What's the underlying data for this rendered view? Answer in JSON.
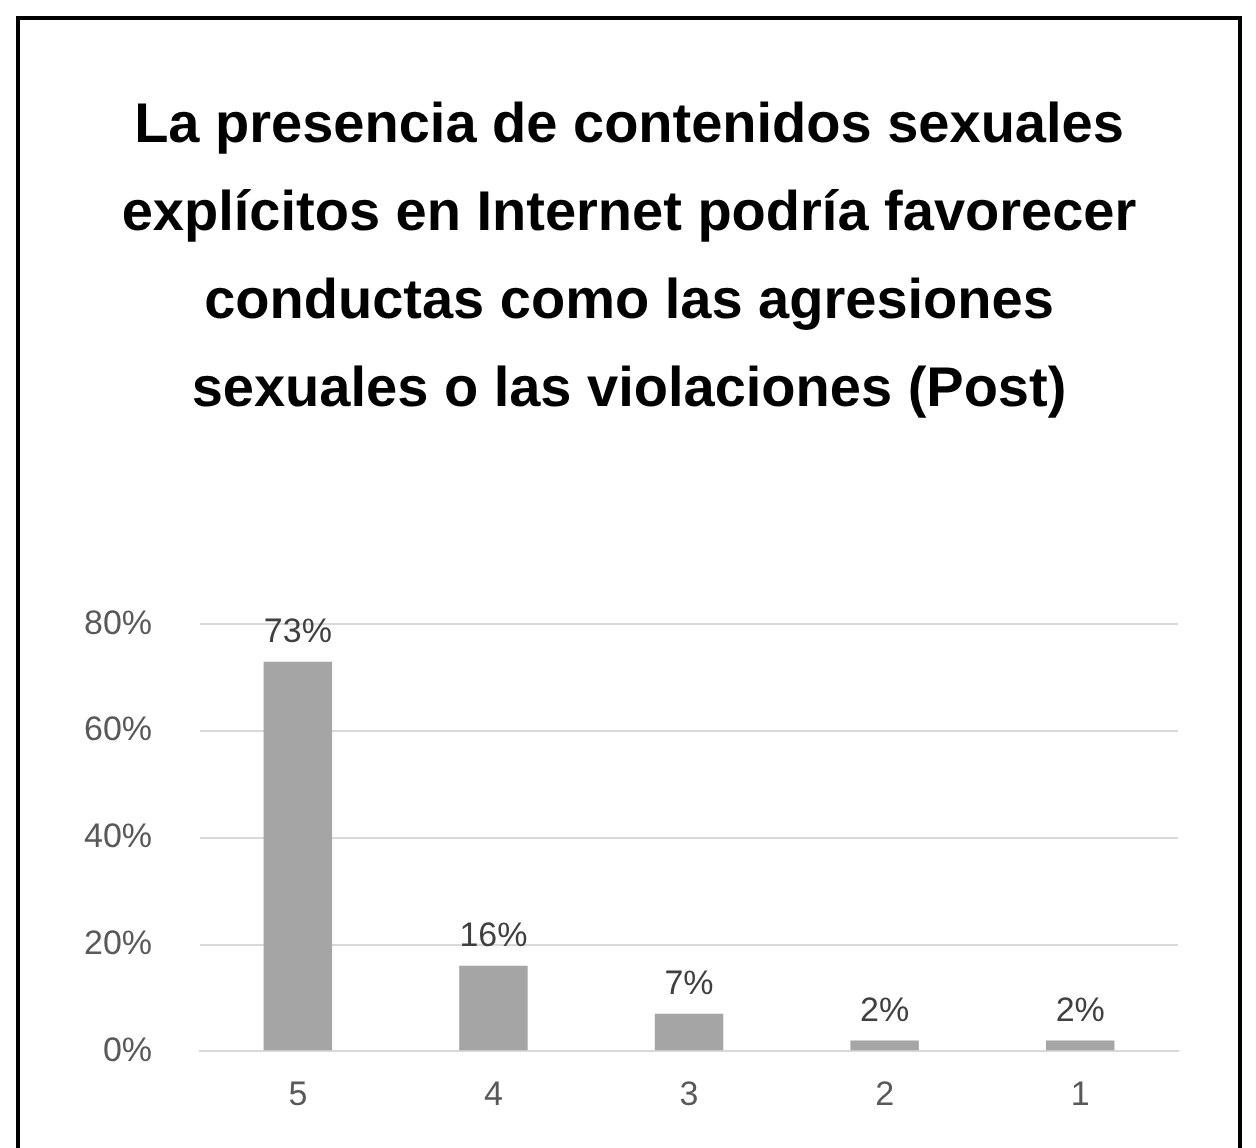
{
  "chart_data": {
    "type": "bar",
    "title": "La presencia de contenidos sexuales explícitos en Internet podría favorecer conductas como las agresiones sexuales o las violaciones (Post)",
    "categories": [
      "5",
      "4",
      "3",
      "2",
      "1"
    ],
    "values": [
      73,
      16,
      7,
      2,
      2
    ],
    "value_labels": [
      "73%",
      "16%",
      "7%",
      "2%",
      "2%"
    ],
    "color": "#a5a5a5",
    "ylim": [
      0,
      80
    ],
    "yticks": [
      {
        "value": 0,
        "label": "0%"
      },
      {
        "value": 20,
        "label": "20%"
      },
      {
        "value": 40,
        "label": "40%"
      },
      {
        "value": 60,
        "label": "60%"
      },
      {
        "value": 80,
        "label": "80%"
      }
    ],
    "grid": "y",
    "legend": false
  }
}
